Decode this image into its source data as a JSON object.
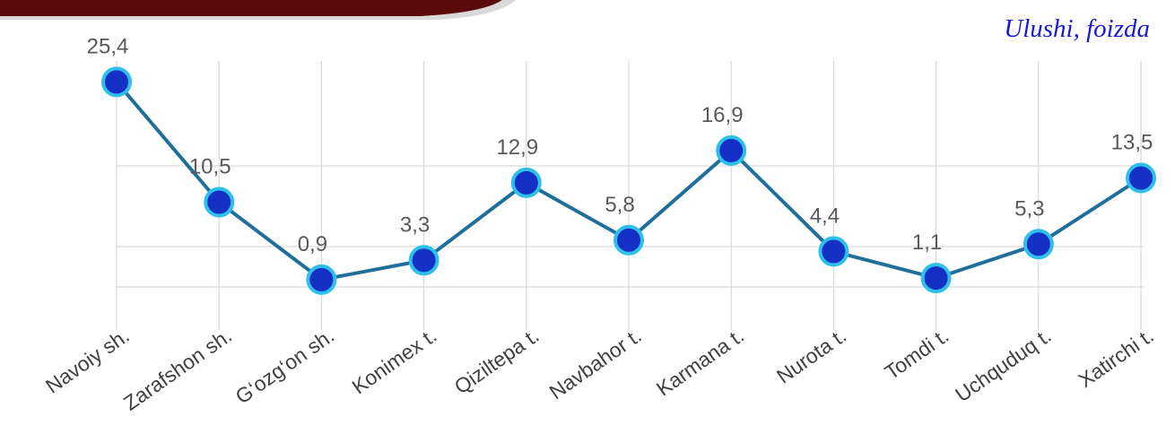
{
  "chart_data": {
    "type": "line",
    "categories": [
      "Navoiy sh.",
      "Zarafshon sh.",
      "G‘ozg‘on sh.",
      "Konimex t.",
      "Qiziltepa t.",
      "Navbahor t.",
      "Karmana t.",
      "Nurota t.",
      "Tomdi t.",
      "Uchquduq t.",
      "Xatirchi t."
    ],
    "values": [
      25.4,
      10.5,
      0.9,
      3.3,
      12.9,
      5.8,
      16.9,
      4.4,
      1.1,
      5.3,
      13.5
    ],
    "value_labels": [
      "25,4",
      "10,5",
      "0,9",
      "3,3",
      "12,9",
      "5,8",
      "16,9",
      "4,4",
      "1,1",
      "5,3",
      "13,5"
    ],
    "annotation": "Ulushi, foizda",
    "grid": "horizontal",
    "colors": {
      "line": "#1f6f9a",
      "marker_fill": "#1530c4",
      "marker_edge": "#2ec0ea",
      "annotation": "#1a1ad4"
    }
  }
}
